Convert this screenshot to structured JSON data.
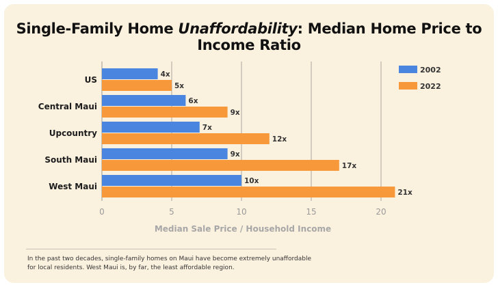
{
  "title": {
    "before": "Single-Family Home ",
    "emph": "Unaffordability",
    "after": ": Median Home Price to Income Ratio"
  },
  "caption": "In the past two decades, single-family homes on Maui have become extremely unaffordable for local residents. West Maui is, by far, the least affordable region.",
  "chart_data": {
    "type": "bar",
    "orientation": "horizontal",
    "title": "Single-Family Home Unaffordability: Median Home Price to Income Ratio",
    "xlabel": "Median Sale Price / Household Income",
    "ylabel": "",
    "categories": [
      "US",
      "Central Maui",
      "Upcountry",
      "South Maui",
      "West Maui"
    ],
    "series": [
      {
        "name": "2002",
        "color": "#4a86df",
        "values": [
          4,
          6,
          7,
          9,
          10
        ],
        "labels": [
          "4x",
          "6x",
          "7x",
          "9x",
          "10x"
        ]
      },
      {
        "name": "2022",
        "color": "#f7993b",
        "values": [
          5,
          9,
          12,
          17,
          21
        ],
        "labels": [
          "5x",
          "9x",
          "12x",
          "17x",
          "21x"
        ]
      }
    ],
    "xlim": [
      0,
      22
    ],
    "xticks": [
      0,
      5,
      10,
      15,
      20
    ],
    "grid": true,
    "legend_position": "top-right"
  }
}
